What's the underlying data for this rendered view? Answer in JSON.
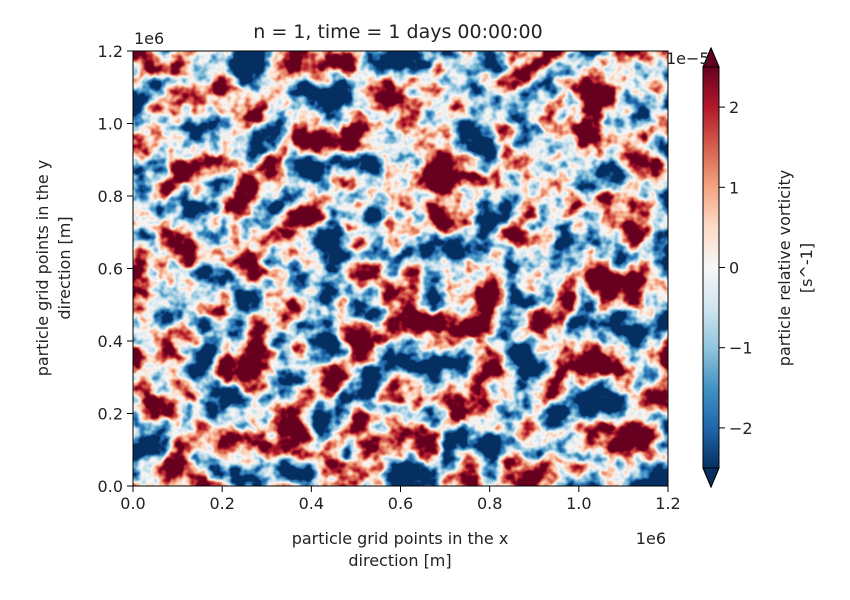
{
  "chart_data": {
    "type": "heatmap",
    "title": "n = 1, time = 1 days 00:00:00",
    "xlabel_lines": [
      "particle grid points in the x",
      "direction [m]"
    ],
    "ylabel_lines": [
      "particle grid points in the y",
      "direction [m]"
    ],
    "xlim": [
      0.0,
      1.2
    ],
    "ylim": [
      0.0,
      1.2
    ],
    "x_ticks": [
      0.0,
      0.2,
      0.4,
      0.6,
      0.8,
      1.0,
      1.2
    ],
    "y_ticks": [
      0.0,
      0.2,
      0.4,
      0.6,
      0.8,
      1.0,
      1.2
    ],
    "x_tick_labels": [
      "0.0",
      "0.2",
      "0.4",
      "0.6",
      "0.8",
      "1.0",
      "1.2"
    ],
    "y_tick_labels": [
      "0.0",
      "0.2",
      "0.4",
      "0.6",
      "0.8",
      "1.0",
      "1.2"
    ],
    "x_offset_label": "1e6",
    "y_offset_label": "1e6",
    "colormap": "RdBu_r",
    "colormap_stops": [
      "#053061",
      "#2166ac",
      "#4393c3",
      "#92c5de",
      "#d1e5f0",
      "#f7f7f7",
      "#fddbc7",
      "#f4a582",
      "#d6604d",
      "#b2182b",
      "#67001f"
    ],
    "colorbar": {
      "label_lines": [
        "particle relative vorticity",
        "[s^-1]"
      ],
      "vmin": -2.5,
      "vmax": 2.5,
      "ticks": [
        -2,
        -1,
        0,
        1,
        2
      ],
      "tick_labels": [
        "−2",
        "−1",
        "0",
        "1",
        "2"
      ],
      "offset_label": "1e−5",
      "extend": "both"
    }
  }
}
